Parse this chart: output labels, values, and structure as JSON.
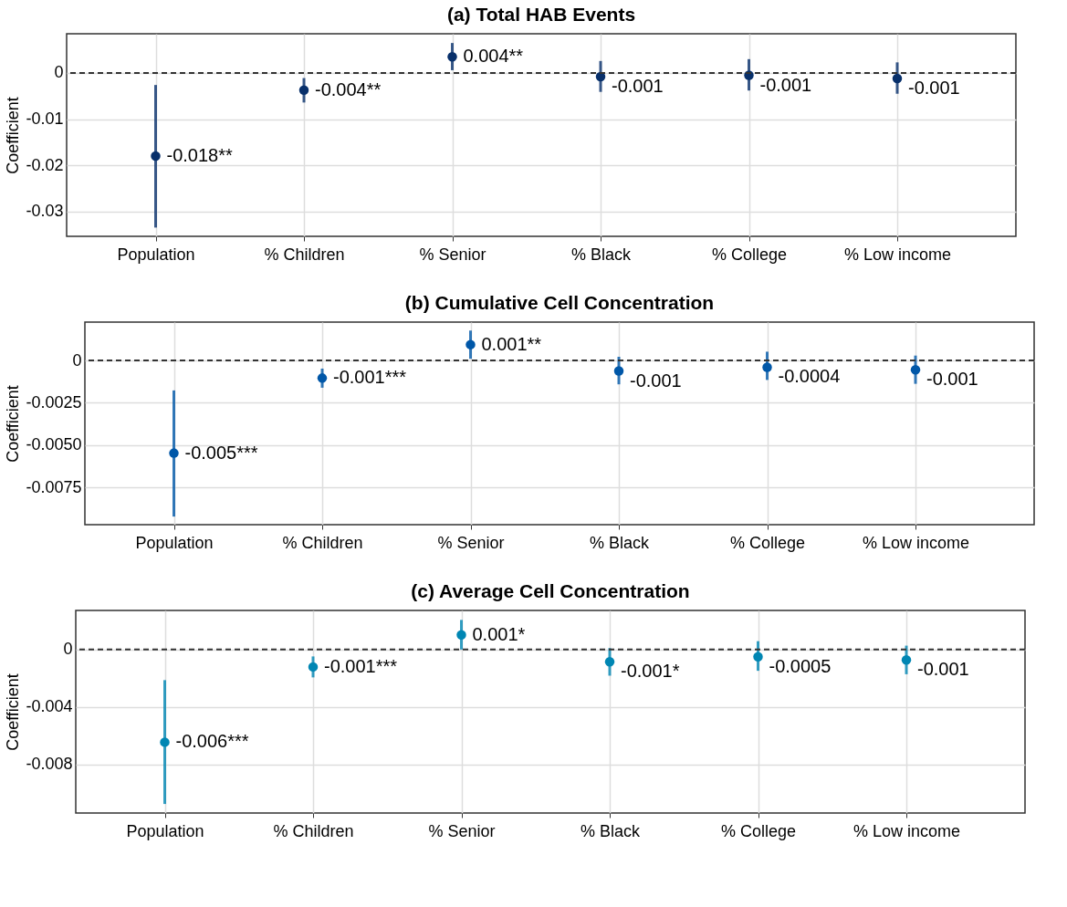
{
  "chart_data": [
    {
      "type": "scatter",
      "title": "(a) Total HAB Events",
      "ylabel": "Coefficient",
      "categories": [
        "Population",
        "% Children",
        "% Senior",
        "% Black",
        "% College",
        "% Low income"
      ],
      "series": [
        {
          "color": "#08306b",
          "values": [
            -0.018,
            -0.0037,
            0.0035,
            -0.0008,
            -0.0005,
            -0.0012
          ],
          "errors": [
            [
              -0.0335,
              -0.0026
            ],
            [
              -0.0064,
              -0.0011
            ],
            [
              0.0006,
              0.0065
            ],
            [
              -0.0041,
              0.0026
            ],
            [
              -0.0038,
              0.003
            ],
            [
              -0.0045,
              0.0023
            ]
          ],
          "value_labels": [
            "-0.018**",
            "-0.004**",
            "0.004**",
            "-0.001",
            "-0.001",
            "-0.001"
          ]
        }
      ],
      "ylim": [
        -0.0354,
        0.0085
      ],
      "yticks": [
        -0.03,
        -0.02,
        -0.01,
        0
      ],
      "grid": true,
      "marker": "circle",
      "ref_lines": [
        {
          "axis": "y",
          "value": 0,
          "line_style": "dashed",
          "color": "#333333"
        }
      ]
    },
    {
      "type": "scatter",
      "title": "(b) Cumulative Cell Concentration",
      "ylabel": "Coefficient",
      "categories": [
        "Population",
        "% Children",
        "% Senior",
        "% Black",
        "% College",
        "% Low income"
      ],
      "series": [
        {
          "color": "#0057a8",
          "values": [
            -0.00548,
            -0.00104,
            0.00094,
            -0.00062,
            -0.0004,
            -0.00055
          ],
          "errors": [
            [
              -0.00923,
              -0.00177
            ],
            [
              -0.00161,
              -0.00048
            ],
            [
              0.0001,
              0.00177
            ],
            [
              -0.00141,
              0.00022
            ],
            [
              -0.00115,
              0.00052
            ],
            [
              -0.00138,
              0.00029
            ]
          ],
          "value_labels": [
            "-0.005***",
            "-0.001***",
            "0.001**",
            "-0.001",
            "-0.0004",
            "-0.001"
          ]
        }
      ],
      "ylim": [
        -0.00971,
        0.00227
      ],
      "yticks": [
        {
          "value": -0.0075,
          "label": "-0.0075"
        },
        {
          "value": -0.005,
          "label": "-0.0050"
        },
        {
          "value": -0.0025,
          "label": "-0.0025"
        },
        0
      ],
      "grid": true,
      "marker": "circle",
      "ref_lines": [
        {
          "axis": "y",
          "value": 0,
          "line_style": "dashed",
          "color": "#333333"
        }
      ]
    },
    {
      "type": "scatter",
      "title": "(c) Average Cell Concentration",
      "ylabel": "Coefficient",
      "categories": [
        "Population",
        "% Children",
        "% Senior",
        "% Black",
        "% College",
        "% Low income"
      ],
      "series": [
        {
          "color": "#0086b3",
          "values": [
            -0.00645,
            -0.00121,
            0.00102,
            -0.00085,
            -0.0005,
            -0.00073
          ],
          "errors": [
            [
              -0.01075,
              -0.00213
            ],
            [
              -0.00194,
              -0.00048
            ],
            [
              0,
              0.00206
            ],
            [
              -0.00182,
              0.0001
            ],
            [
              -0.00148,
              0.00058
            ],
            [
              -0.00172,
              0.00027
            ]
          ],
          "value_labels": [
            "-0.006***",
            "-0.001***",
            "0.001*",
            "-0.001*",
            "-0.0005",
            "-0.001"
          ]
        }
      ],
      "ylim": [
        -0.01138,
        0.00272
      ],
      "yticks": [
        -0.008,
        -0.004,
        0
      ],
      "grid": true,
      "marker": "circle",
      "ref_lines": [
        {
          "axis": "y",
          "value": 0,
          "line_style": "dashed",
          "color": "#333333"
        }
      ]
    }
  ]
}
